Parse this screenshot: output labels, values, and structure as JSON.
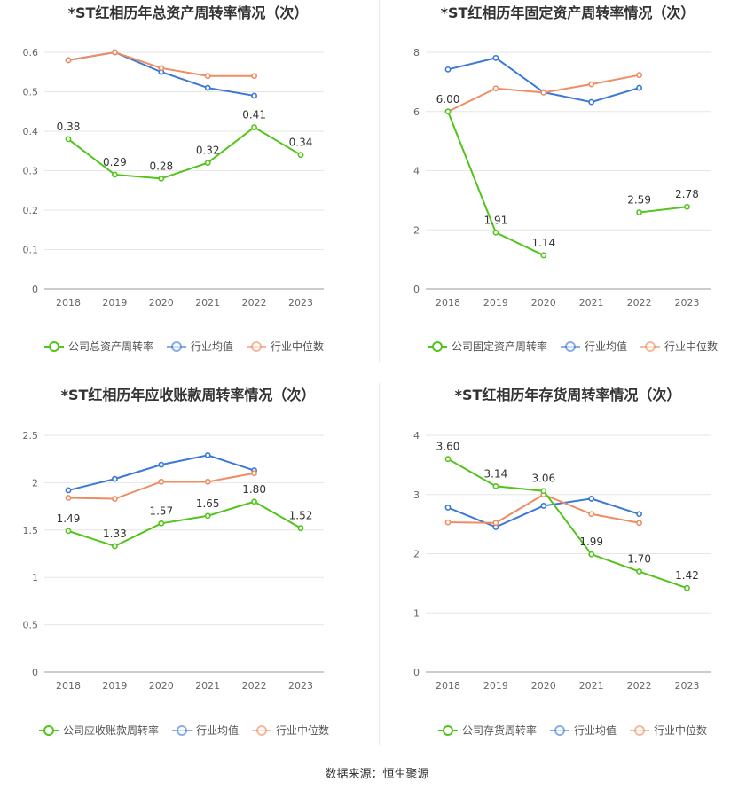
{
  "source": "数据来源：恒生聚源",
  "chart_data": [
    {
      "type": "line",
      "title": "*ST红相历年总资产周转率情况（次）",
      "categories": [
        "2018",
        "2019",
        "2020",
        "2021",
        "2022",
        "2023"
      ],
      "ylim": [
        0,
        0.6
      ],
      "yticks": [
        "0",
        "0.1",
        "0.2",
        "0.3",
        "0.4",
        "0.5",
        "0.6"
      ],
      "legend_position": "bottom",
      "series": [
        {
          "name": "公司总资产周转率",
          "color": "#52c41a",
          "values": [
            0.38,
            0.29,
            0.28,
            0.32,
            0.41,
            0.34
          ],
          "labels": [
            "0.38",
            "0.29",
            "0.28",
            "0.32",
            "0.41",
            "0.34"
          ]
        },
        {
          "name": "行业均值",
          "color": "#3b78d8",
          "values": [
            0.58,
            0.6,
            0.55,
            0.51,
            0.49,
            null
          ]
        },
        {
          "name": "行业中位数",
          "color": "#f08c62",
          "values": [
            0.58,
            0.6,
            0.56,
            0.54,
            0.54,
            null
          ]
        }
      ]
    },
    {
      "type": "line",
      "title": "*ST红相历年固定资产周转率情况（次）",
      "categories": [
        "2018",
        "2019",
        "2020",
        "2021",
        "2022",
        "2023"
      ],
      "ylim": [
        0,
        8
      ],
      "yticks": [
        "0",
        "2",
        "4",
        "6",
        "8"
      ],
      "legend_position": "bottom",
      "series": [
        {
          "name": "公司固定资产周转率",
          "color": "#52c41a",
          "values": [
            6.0,
            1.91,
            1.14,
            null,
            2.59,
            2.78
          ],
          "labels": [
            "6.00",
            "1.91",
            "1.14",
            "",
            "2.59",
            "2.78"
          ]
        },
        {
          "name": "行业均值",
          "color": "#3b78d8",
          "values": [
            7.42,
            7.81,
            6.65,
            6.32,
            6.8,
            null
          ]
        },
        {
          "name": "行业中位数",
          "color": "#f08c62",
          "values": [
            6.0,
            6.78,
            6.64,
            6.92,
            7.23,
            null
          ]
        }
      ]
    },
    {
      "type": "line",
      "title": "*ST红相历年应收账款周转率情况（次）",
      "categories": [
        "2018",
        "2019",
        "2020",
        "2021",
        "2022",
        "2023"
      ],
      "ylim": [
        0,
        2.5
      ],
      "yticks": [
        "0",
        "0.5",
        "1",
        "1.5",
        "2",
        "2.5"
      ],
      "legend_position": "bottom",
      "series": [
        {
          "name": "公司应收账款周转率",
          "color": "#52c41a",
          "values": [
            1.49,
            1.33,
            1.57,
            1.65,
            1.8,
            1.52
          ],
          "labels": [
            "1.49",
            "1.33",
            "1.57",
            "1.65",
            "1.80",
            "1.52"
          ]
        },
        {
          "name": "行业均值",
          "color": "#3b78d8",
          "values": [
            1.92,
            2.04,
            2.19,
            2.29,
            2.13,
            null
          ]
        },
        {
          "name": "行业中位数",
          "color": "#f08c62",
          "values": [
            1.84,
            1.83,
            2.01,
            2.01,
            2.1,
            null
          ]
        }
      ]
    },
    {
      "type": "line",
      "title": "*ST红相历年存货周转率情况（次）",
      "categories": [
        "2018",
        "2019",
        "2020",
        "2021",
        "2022",
        "2023"
      ],
      "ylim": [
        0,
        4
      ],
      "yticks": [
        "0",
        "1",
        "2",
        "3",
        "4"
      ],
      "legend_position": "bottom",
      "series": [
        {
          "name": "公司存货周转率",
          "color": "#52c41a",
          "values": [
            3.6,
            3.14,
            3.06,
            1.99,
            1.7,
            1.42
          ],
          "labels": [
            "3.60",
            "3.14",
            "3.06",
            "1.99",
            "1.70",
            "1.42"
          ]
        },
        {
          "name": "行业均值",
          "color": "#3b78d8",
          "values": [
            2.78,
            2.45,
            2.81,
            2.93,
            2.67,
            null
          ]
        },
        {
          "name": "行业中位数",
          "color": "#f08c62",
          "values": [
            2.53,
            2.52,
            3.0,
            2.67,
            2.52,
            null
          ]
        }
      ]
    }
  ]
}
